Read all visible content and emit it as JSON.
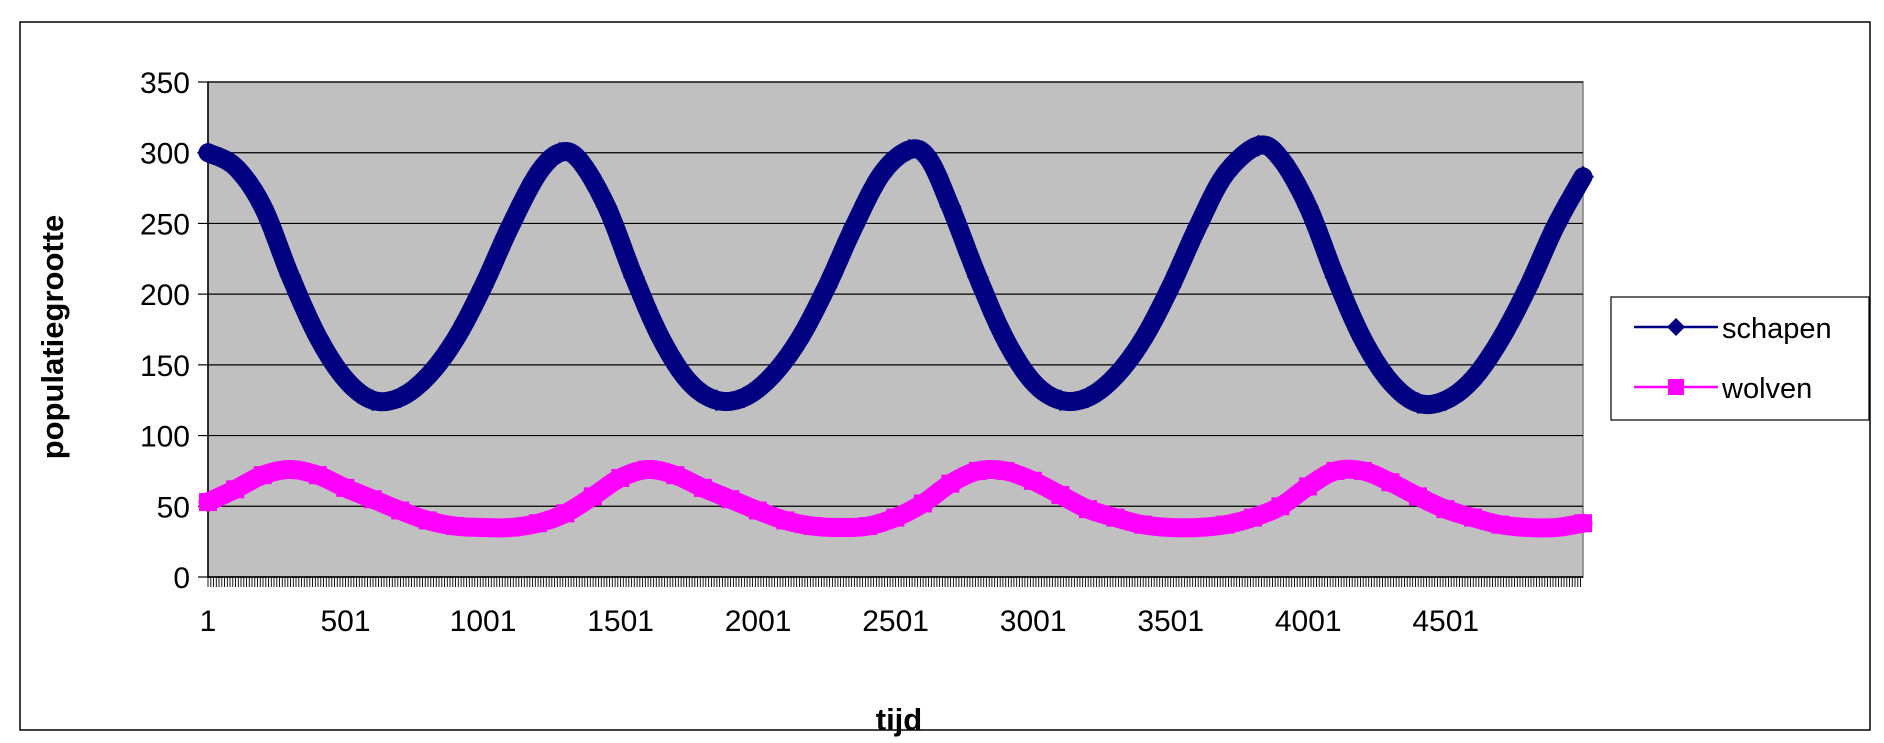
{
  "chart_data": {
    "type": "line",
    "title": "",
    "xlabel": "tijd",
    "ylabel": "populatiegrootte",
    "xlim": [
      1,
      5000
    ],
    "ylim": [
      0,
      350
    ],
    "x_ticks": [
      1,
      501,
      1001,
      1501,
      2001,
      2501,
      3001,
      3501,
      4001,
      4501
    ],
    "y_ticks": [
      0,
      50,
      100,
      150,
      200,
      250,
      300,
      350
    ],
    "grid": "horizontal",
    "legend": "right",
    "colors": {
      "plot_background": "#c0c0c0",
      "schapen": "#000080",
      "wolven": "#ff00ff"
    },
    "series": [
      {
        "name": "schapen",
        "color": "#000080",
        "marker": "diamond",
        "points": [
          [
            1,
            300
          ],
          [
            100,
            290
          ],
          [
            200,
            262
          ],
          [
            300,
            213
          ],
          [
            400,
            170
          ],
          [
            500,
            140
          ],
          [
            600,
            125
          ],
          [
            700,
            127
          ],
          [
            800,
            142
          ],
          [
            900,
            168
          ],
          [
            1000,
            205
          ],
          [
            1100,
            248
          ],
          [
            1200,
            285
          ],
          [
            1280,
            300
          ],
          [
            1350,
            295
          ],
          [
            1450,
            262
          ],
          [
            1550,
            212
          ],
          [
            1650,
            168
          ],
          [
            1750,
            138
          ],
          [
            1850,
            125
          ],
          [
            1950,
            127
          ],
          [
            2050,
            142
          ],
          [
            2150,
            168
          ],
          [
            2250,
            205
          ],
          [
            2350,
            248
          ],
          [
            2450,
            285
          ],
          [
            2550,
            302
          ],
          [
            2620,
            296
          ],
          [
            2700,
            262
          ],
          [
            2800,
            212
          ],
          [
            2900,
            168
          ],
          [
            3000,
            138
          ],
          [
            3100,
            125
          ],
          [
            3200,
            127
          ],
          [
            3300,
            142
          ],
          [
            3400,
            168
          ],
          [
            3500,
            205
          ],
          [
            3600,
            248
          ],
          [
            3700,
            285
          ],
          [
            3820,
            305
          ],
          [
            3900,
            296
          ],
          [
            4000,
            262
          ],
          [
            4100,
            212
          ],
          [
            4200,
            168
          ],
          [
            4300,
            138
          ],
          [
            4400,
            123
          ],
          [
            4500,
            125
          ],
          [
            4600,
            140
          ],
          [
            4700,
            168
          ],
          [
            4800,
            205
          ],
          [
            4900,
            248
          ],
          [
            5000,
            283
          ]
        ]
      },
      {
        "name": "wolven",
        "color": "#ff00ff",
        "marker": "square",
        "points": [
          [
            1,
            53
          ],
          [
            100,
            62
          ],
          [
            200,
            72
          ],
          [
            300,
            76
          ],
          [
            400,
            72
          ],
          [
            500,
            63
          ],
          [
            600,
            55
          ],
          [
            700,
            47
          ],
          [
            800,
            40
          ],
          [
            900,
            36
          ],
          [
            1000,
            35
          ],
          [
            1100,
            35
          ],
          [
            1200,
            38
          ],
          [
            1300,
            45
          ],
          [
            1400,
            57
          ],
          [
            1500,
            70
          ],
          [
            1600,
            76
          ],
          [
            1700,
            72
          ],
          [
            1800,
            63
          ],
          [
            1900,
            55
          ],
          [
            2000,
            47
          ],
          [
            2100,
            40
          ],
          [
            2200,
            36
          ],
          [
            2300,
            35
          ],
          [
            2400,
            36
          ],
          [
            2500,
            42
          ],
          [
            2600,
            52
          ],
          [
            2700,
            66
          ],
          [
            2800,
            75
          ],
          [
            2900,
            75
          ],
          [
            3000,
            68
          ],
          [
            3100,
            58
          ],
          [
            3200,
            48
          ],
          [
            3300,
            42
          ],
          [
            3400,
            37
          ],
          [
            3500,
            35
          ],
          [
            3600,
            35
          ],
          [
            3700,
            37
          ],
          [
            3800,
            42
          ],
          [
            3900,
            50
          ],
          [
            4000,
            64
          ],
          [
            4100,
            75
          ],
          [
            4200,
            75
          ],
          [
            4300,
            67
          ],
          [
            4400,
            57
          ],
          [
            4500,
            48
          ],
          [
            4600,
            42
          ],
          [
            4700,
            37
          ],
          [
            4800,
            35
          ],
          [
            4900,
            35
          ],
          [
            5000,
            38
          ]
        ]
      }
    ]
  }
}
